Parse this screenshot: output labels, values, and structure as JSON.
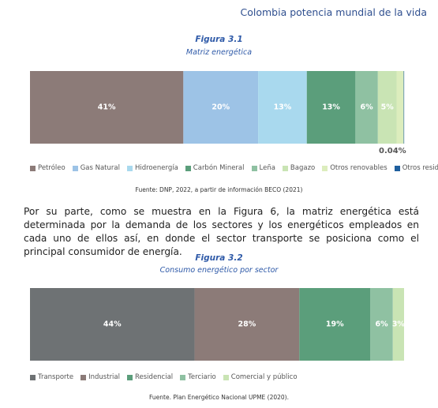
{
  "header": {
    "title": "Colombia potencia mundial de la vida"
  },
  "figures": [
    {
      "label": "Figura 3.1",
      "caption": "Matriz energética",
      "chart_data": {
        "type": "stacked-bar",
        "xlim": [
          0,
          100
        ],
        "series": [
          {
            "name": "Petróleo",
            "color": "#8c7b78",
            "values": [
              41
            ],
            "value_labels": [
              "41%"
            ]
          },
          {
            "name": "Gas Natural",
            "color": "#9dc3e6",
            "values": [
              20
            ],
            "value_labels": [
              "20%"
            ]
          },
          {
            "name": "Hidroenergía",
            "color": "#a9d9ee",
            "values": [
              13
            ],
            "value_labels": [
              "13%"
            ]
          },
          {
            "name": "Carbón Mineral",
            "color": "#5b9e7b",
            "values": [
              13
            ],
            "value_labels": [
              "13%"
            ]
          },
          {
            "name": "Leña",
            "color": "#8fc1a2",
            "values": [
              6
            ],
            "value_labels": [
              "6%"
            ]
          },
          {
            "name": "Bagazo",
            "color": "#c9e4b4",
            "values": [
              5
            ],
            "value_labels": [
              "5%"
            ]
          },
          {
            "name": "Otros renovables",
            "color": "#dcedbd",
            "values": [
              1.9
            ]
          },
          {
            "name": "Otros residuos",
            "color": "#1f5f9e",
            "values": [
              0.04
            ],
            "value_labels": [
              "0.04%"
            ]
          }
        ]
      },
      "source": "Fuente: DNP, 2022, a partir de información BECO (2021)"
    },
    {
      "label": "Figura 3.2",
      "caption": "Consumo energético por sector",
      "chart_data": {
        "type": "stacked-bar",
        "xlim": [
          0,
          100
        ],
        "series": [
          {
            "name": "Transporte",
            "color": "#6e7274",
            "values": [
              44
            ],
            "value_labels": [
              "44%"
            ]
          },
          {
            "name": "Industrial",
            "color": "#8c7b78",
            "values": [
              28
            ],
            "value_labels": [
              "28%"
            ]
          },
          {
            "name": "Residencial",
            "color": "#5b9e7b",
            "values": [
              19
            ],
            "value_labels": [
              "19%"
            ]
          },
          {
            "name": "Terciario",
            "color": "#8fc1a2",
            "values": [
              6
            ],
            "value_labels": [
              "6%"
            ]
          },
          {
            "name": "Comercial y público",
            "color": "#c9e4b4",
            "values": [
              3
            ],
            "value_labels": [
              "3%"
            ]
          }
        ]
      },
      "source": "Fuente. Plan Energético Nacional UPME (2020)."
    }
  ],
  "paragraph": "Por su parte, como se muestra en la Figura 6, la matriz energética está determinada por la demanda de los sectores y los energéticos empleados en cada uno de ellos así, en donde el sector transporte se posiciona como el principal consumidor de energía."
}
